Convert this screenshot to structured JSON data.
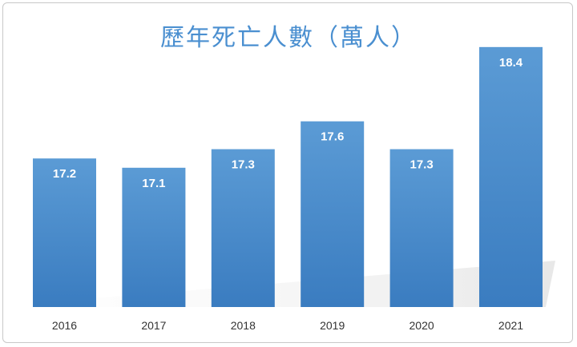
{
  "chart_data": {
    "type": "bar",
    "title": "歷年死亡人數（萬人）",
    "categories": [
      "2016",
      "2017",
      "2018",
      "2019",
      "2020",
      "2021"
    ],
    "values": [
      17.2,
      17.1,
      17.3,
      17.6,
      17.3,
      18.4
    ],
    "data_labels": [
      "17.2",
      "17.1",
      "17.3",
      "17.6",
      "17.3",
      "18.4"
    ],
    "xlabel": "",
    "ylabel": "",
    "ylim": [
      15.6,
      18.7
    ],
    "grid": false,
    "legend": "none",
    "bar_color_top": "#5b9bd5",
    "bar_color_bottom": "#3a7cc0",
    "title_color": "#4a8fd0"
  }
}
